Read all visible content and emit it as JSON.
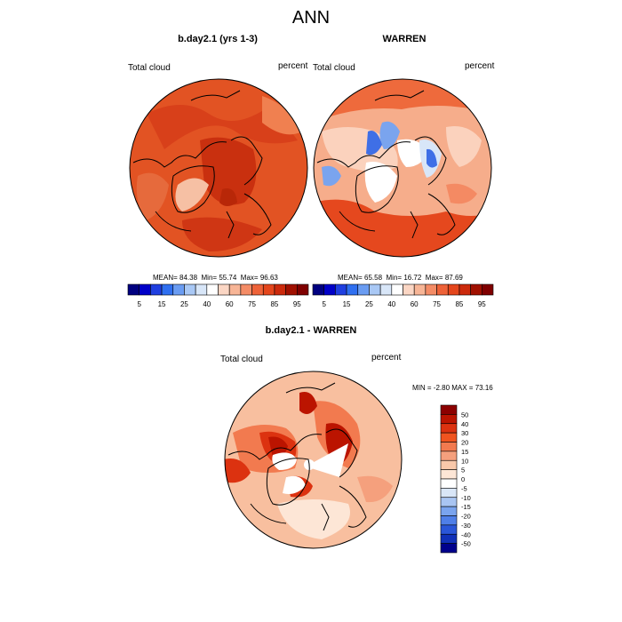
{
  "main_title": "ANN",
  "panels": [
    {
      "title": "b.day2.1 (yrs 1-3)",
      "left_label": "Total cloud",
      "right_label": "percent",
      "stats": {
        "mean_label": "MEAN=",
        "mean": "84.38",
        "min_label": "Min=",
        "min": "55.74",
        "max_label": "Max=",
        "max": "96.63"
      }
    },
    {
      "title": "WARREN",
      "left_label": "Total cloud",
      "right_label": "percent",
      "stats": {
        "mean_label": "MEAN=",
        "mean": "65.58",
        "min_label": "Min=",
        "min": "16.72",
        "max_label": "Max=",
        "max": "87.69"
      }
    },
    {
      "title": "b.day2.1 - WARREN",
      "left_label": "Total cloud",
      "right_label": "percent",
      "stats_text": "MIN =  -2.80 MAX =  73.16"
    }
  ],
  "colorbar_top": {
    "labels": [
      "5",
      "15",
      "25",
      "40",
      "60",
      "75",
      "85",
      "95"
    ],
    "colors": [
      "#000080",
      "#0000c8",
      "#1f3fe0",
      "#2f6ff0",
      "#6a9cf2",
      "#a9c8f5",
      "#d8e6f8",
      "#ffffff",
      "#fbd6c4",
      "#f7b596",
      "#f48c66",
      "#ee6238",
      "#e4461c",
      "#cc2a0c",
      "#a01000",
      "#7f0000"
    ]
  },
  "colorbar_diff": {
    "labels": [
      "50",
      "40",
      "30",
      "20",
      "15",
      "10",
      "5",
      "0",
      "-5",
      "-10",
      "-15",
      "-20",
      "-30",
      "-40",
      "-50"
    ],
    "colors": [
      "#8c0000",
      "#bb1400",
      "#dc3210",
      "#f0541f",
      "#f27a4f",
      "#f5a07d",
      "#f9c8aa",
      "#fde6d6",
      "#ffffff",
      "#d9e6f7",
      "#a9c5f2",
      "#7aa4ee",
      "#4f7fe8",
      "#2a56d8",
      "#1030b8",
      "#00008c"
    ]
  },
  "map_colors": {
    "panel1": {
      "base": "#e25323",
      "shades": [
        "#d8401a",
        "#c9300f",
        "#e66a3c",
        "#f08050",
        "#cf3614",
        "#b82708"
      ]
    },
    "panel2": {
      "base": "#f6ad8b",
      "shades": [
        "#ee6a3c",
        "#e5481e",
        "#fbd2bd",
        "#ffffff",
        "#7aa4ee",
        "#3f6fe6",
        "#d8e6f8",
        "#f48a63"
      ]
    },
    "diff": {
      "base": "#f8bf9f",
      "shades": [
        "#f27a4f",
        "#dc3210",
        "#bb1400",
        "#fde6d6",
        "#ffffff",
        "#f5a07d"
      ]
    }
  }
}
